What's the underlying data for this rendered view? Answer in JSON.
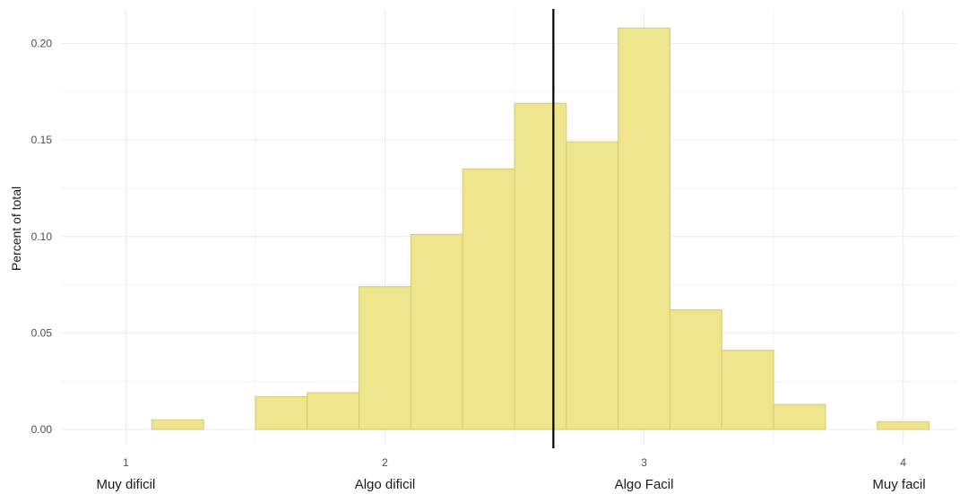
{
  "chart_data": {
    "type": "bar",
    "subtype": "histogram",
    "ylabel": "Percent of total",
    "xlim": [
      0.9,
      4.1
    ],
    "ylim": [
      0,
      0.21
    ],
    "x_ticks": [
      1,
      2,
      3,
      4
    ],
    "y_ticks": [
      "0.00",
      "0.05",
      "0.10",
      "0.15",
      "0.20"
    ],
    "x_category_labels": [
      "Muy dificil",
      "Algo dificil",
      "Algo Facil",
      "Muy facil"
    ],
    "bins": [
      {
        "start": 0.9,
        "end": 1.1,
        "value": 0.0
      },
      {
        "start": 1.1,
        "end": 1.3,
        "value": 0.005
      },
      {
        "start": 1.3,
        "end": 1.5,
        "value": 0.0
      },
      {
        "start": 1.5,
        "end": 1.7,
        "value": 0.017
      },
      {
        "start": 1.7,
        "end": 1.9,
        "value": 0.019
      },
      {
        "start": 1.9,
        "end": 2.1,
        "value": 0.074
      },
      {
        "start": 2.1,
        "end": 2.3,
        "value": 0.101
      },
      {
        "start": 2.3,
        "end": 2.5,
        "value": 0.135
      },
      {
        "start": 2.5,
        "end": 2.7,
        "value": 0.169
      },
      {
        "start": 2.7,
        "end": 2.9,
        "value": 0.149
      },
      {
        "start": 2.9,
        "end": 3.1,
        "value": 0.208
      },
      {
        "start": 3.1,
        "end": 3.3,
        "value": 0.062
      },
      {
        "start": 3.3,
        "end": 3.5,
        "value": 0.041
      },
      {
        "start": 3.5,
        "end": 3.7,
        "value": 0.013
      },
      {
        "start": 3.7,
        "end": 3.9,
        "value": 0.0
      },
      {
        "start": 3.9,
        "end": 4.1,
        "value": 0.004
      }
    ],
    "mean_line_x": 2.65,
    "colors": {
      "bar_fill": "#EEE58C",
      "bar_stroke": "#D4C977",
      "mean_line": "#000000",
      "grid": "#EBEBEB"
    },
    "grid": true,
    "legend": "none"
  }
}
